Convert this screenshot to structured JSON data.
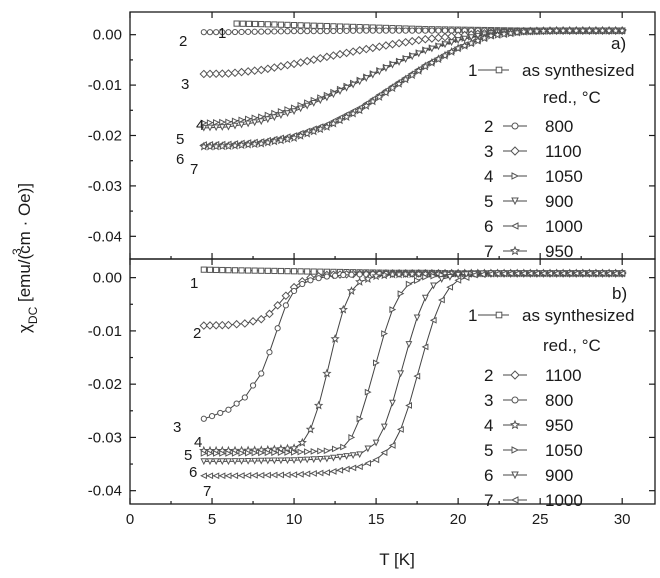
{
  "figure": {
    "xlabel": "T [K]",
    "ylabel_main": "χ",
    "ylabel_sub": "DC",
    "ylabel_rest": " [emu/(cm · Oe)]",
    "ylabel_sup": "3"
  },
  "chart_data": [
    {
      "type": "scatter",
      "panel_label": "a)",
      "xlim": [
        0,
        32
      ],
      "ylim": [
        -0.0445,
        0.0045
      ],
      "xticks": [
        0,
        5,
        10,
        15,
        20,
        25,
        30
      ],
      "yticks": [
        0.0,
        -0.01,
        -0.02,
        -0.03,
        -0.04
      ],
      "ytick_labels": [
        "0.00",
        "-0.01",
        "-0.02",
        "-0.03",
        "-0.04"
      ],
      "grid": false,
      "legend_position": "right",
      "legend": {
        "header": [
          {
            "num": "1",
            "marker": "square",
            "label": "as synthesized"
          }
        ],
        "subheader": "red., °C",
        "entries": [
          {
            "num": "2",
            "marker": "circle",
            "label": "800"
          },
          {
            "num": "3",
            "marker": "diamond",
            "label": "1100"
          },
          {
            "num": "4",
            "marker": "triangle-right",
            "label": "1050"
          },
          {
            "num": "5",
            "marker": "triangle-down",
            "label": "900"
          },
          {
            "num": "6",
            "marker": "triangle-left",
            "label": "1000"
          },
          {
            "num": "7",
            "marker": "star",
            "label": "950"
          }
        ]
      },
      "series": [
        {
          "num": "1",
          "marker": "square",
          "xs": [
            6.5,
            8,
            10,
            12,
            14,
            16,
            18,
            20,
            22,
            24,
            26,
            28,
            30
          ],
          "ys": [
            0.0022,
            0.0021,
            0.0019,
            0.0017,
            0.0015,
            0.0013,
            0.0011,
            0.001,
            0.0009,
            0.0008,
            0.0008,
            0.0008,
            0.0008
          ]
        },
        {
          "num": "2",
          "marker": "circle",
          "xs": [
            4.5,
            6,
            8,
            10,
            12,
            14,
            16,
            18,
            20,
            22,
            24,
            26,
            28,
            30
          ],
          "ys": [
            0.0005,
            0.0005,
            0.0006,
            0.0007,
            0.0007,
            0.0008,
            0.0008,
            0.0008,
            0.0008,
            0.0008,
            0.0008,
            0.0008,
            0.0008,
            0.0008
          ]
        },
        {
          "num": "3",
          "marker": "diamond",
          "xs": [
            4.5,
            6,
            8,
            10,
            12,
            14,
            16,
            18,
            20,
            22,
            24,
            26,
            28,
            30
          ],
          "ys": [
            -0.0078,
            -0.0077,
            -0.007,
            -0.0058,
            -0.0044,
            -0.0031,
            -0.0019,
            -0.0009,
            -0.0002,
            0.0004,
            0.0007,
            0.0008,
            0.0008,
            0.0008
          ]
        },
        {
          "num": "4",
          "marker": "triangle-right",
          "xs": [
            4.5,
            6,
            8,
            10,
            12,
            14,
            16,
            18,
            20,
            22,
            24,
            26,
            28,
            30
          ],
          "ys": [
            -0.0175,
            -0.0173,
            -0.0163,
            -0.0145,
            -0.012,
            -0.009,
            -0.0058,
            -0.003,
            -0.001,
            0.0003,
            0.0007,
            0.0008,
            0.0008,
            0.0008
          ]
        },
        {
          "num": "5",
          "marker": "triangle-down",
          "xs": [
            4.5,
            6,
            8,
            10,
            12,
            14,
            16,
            18,
            20,
            22,
            24,
            26,
            28,
            30
          ],
          "ys": [
            -0.0185,
            -0.0183,
            -0.0172,
            -0.0152,
            -0.0125,
            -0.0093,
            -0.006,
            -0.0032,
            -0.0011,
            0.0003,
            0.0007,
            0.0008,
            0.0008,
            0.0008
          ]
        },
        {
          "num": "6",
          "marker": "triangle-left",
          "xs": [
            4.5,
            6,
            8,
            10,
            12,
            14,
            16,
            18,
            20,
            22,
            24,
            26,
            28,
            30
          ],
          "ys": [
            -0.0218,
            -0.0217,
            -0.0212,
            -0.02,
            -0.0178,
            -0.0145,
            -0.0102,
            -0.006,
            -0.0025,
            -0.0002,
            0.0006,
            0.0008,
            0.0008,
            0.0008
          ]
        },
        {
          "num": "7",
          "marker": "star",
          "xs": [
            4.5,
            6,
            8,
            10,
            12,
            14,
            16,
            18,
            20,
            22,
            24,
            26,
            28,
            30
          ],
          "ys": [
            -0.0222,
            -0.0221,
            -0.0216,
            -0.0205,
            -0.0183,
            -0.015,
            -0.0106,
            -0.0063,
            -0.0027,
            -0.0002,
            0.0006,
            0.0008,
            0.0008,
            0.0008
          ]
        }
      ]
    },
    {
      "type": "scatter",
      "panel_label": "b)",
      "xlim": [
        0,
        32
      ],
      "ylim": [
        -0.0425,
        0.0035
      ],
      "xticks": [
        0,
        5,
        10,
        15,
        20,
        25,
        30
      ],
      "xtick_labels": [
        "0",
        "5",
        "10",
        "15",
        "20",
        "25",
        "30"
      ],
      "yticks": [
        0.0,
        -0.01,
        -0.02,
        -0.03,
        -0.04
      ],
      "ytick_labels": [
        "0.00",
        "-0.01",
        "-0.02",
        "-0.03",
        "-0.04"
      ],
      "grid": false,
      "legend_position": "right",
      "legend": {
        "header": [
          {
            "num": "1",
            "marker": "square",
            "label": "as synthesized"
          }
        ],
        "subheader": "red., °C",
        "entries": [
          {
            "num": "2",
            "marker": "diamond",
            "label": "1100"
          },
          {
            "num": "3",
            "marker": "circle",
            "label": "800"
          },
          {
            "num": "4",
            "marker": "star",
            "label": "950"
          },
          {
            "num": "5",
            "marker": "triangle-right",
            "label": "1050"
          },
          {
            "num": "6",
            "marker": "triangle-down",
            "label": "900"
          },
          {
            "num": "7",
            "marker": "triangle-left",
            "label": "1000"
          }
        ]
      },
      "series": [
        {
          "num": "1",
          "marker": "square",
          "xs": [
            4.5,
            6,
            8,
            10,
            12,
            14,
            16,
            18,
            20,
            22,
            24,
            26,
            28,
            30
          ],
          "ys": [
            0.0015,
            0.0014,
            0.0013,
            0.0012,
            0.0011,
            0.001,
            0.0009,
            0.0009,
            0.0008,
            0.0008,
            0.0008,
            0.0008,
            0.0008,
            0.0008
          ]
        },
        {
          "num": "2",
          "marker": "diamond",
          "xs": [
            4.5,
            6,
            7,
            8,
            8.5,
            9,
            9.5,
            10,
            10.5,
            11,
            12,
            14,
            16,
            18,
            20,
            22,
            24,
            26,
            28,
            30
          ],
          "ys": [
            -0.009,
            -0.0089,
            -0.0086,
            -0.0078,
            -0.0068,
            -0.0052,
            -0.0034,
            -0.0018,
            -0.0007,
            0.0,
            0.0005,
            0.0007,
            0.0008,
            0.0008,
            0.0008,
            0.0008,
            0.0008,
            0.0008,
            0.0008,
            0.0008
          ]
        },
        {
          "num": "3",
          "marker": "circle",
          "xs": [
            4.5,
            5,
            6,
            7,
            8,
            8.5,
            9,
            9.5,
            10,
            10.5,
            11,
            11.5,
            12,
            13,
            14,
            16,
            18,
            20,
            22,
            24,
            26,
            28,
            30
          ],
          "ys": [
            -0.0265,
            -0.026,
            -0.0248,
            -0.0225,
            -0.018,
            -0.014,
            -0.0095,
            -0.0052,
            -0.0025,
            -0.0012,
            -0.0005,
            -0.0001,
            0.0002,
            0.0005,
            0.0006,
            0.0007,
            0.0008,
            0.0008,
            0.0008,
            0.0008,
            0.0008,
            0.0008,
            0.0008
          ]
        },
        {
          "num": "4",
          "marker": "star",
          "xs": [
            4.5,
            6,
            8,
            10,
            10.5,
            11,
            11.5,
            12,
            12.5,
            13,
            13.5,
            14,
            15,
            16,
            18,
            20,
            22,
            24,
            26,
            28,
            30
          ],
          "ys": [
            -0.0325,
            -0.0325,
            -0.0324,
            -0.032,
            -0.031,
            -0.0285,
            -0.024,
            -0.018,
            -0.0115,
            -0.006,
            -0.0025,
            -0.0008,
            0.0003,
            0.0006,
            0.0007,
            0.0008,
            0.0008,
            0.0008,
            0.0008,
            0.0008,
            0.0008
          ]
        },
        {
          "num": "5",
          "marker": "triangle-right",
          "xs": [
            4.5,
            6,
            8,
            10,
            12,
            13,
            13.5,
            14,
            14.5,
            15,
            15.5,
            16,
            16.5,
            17,
            18,
            19,
            20,
            22,
            24,
            26,
            28,
            30
          ],
          "ys": [
            -0.033,
            -0.033,
            -0.0329,
            -0.0328,
            -0.0325,
            -0.0318,
            -0.03,
            -0.0265,
            -0.0215,
            -0.016,
            -0.0105,
            -0.006,
            -0.003,
            -0.0012,
            0.0001,
            0.0005,
            0.0007,
            0.0008,
            0.0008,
            0.0008,
            0.0008,
            0.0008
          ]
        },
        {
          "num": "6",
          "marker": "triangle-down",
          "xs": [
            4.5,
            6,
            8,
            10,
            12,
            14,
            15,
            15.5,
            16,
            16.5,
            17,
            17.5,
            18,
            18.5,
            19,
            20,
            21,
            22,
            24,
            26,
            28,
            30
          ],
          "ys": [
            -0.0345,
            -0.0345,
            -0.0344,
            -0.0343,
            -0.034,
            -0.0332,
            -0.031,
            -0.028,
            -0.0235,
            -0.018,
            -0.0125,
            -0.0075,
            -0.0038,
            -0.0015,
            -0.0003,
            0.0005,
            0.0007,
            0.0008,
            0.0008,
            0.0008,
            0.0008,
            0.0008
          ]
        },
        {
          "num": "7",
          "marker": "triangle-left",
          "xs": [
            4.5,
            6,
            8,
            10,
            12,
            14,
            15,
            16,
            16.5,
            17,
            17.5,
            18,
            18.5,
            19,
            19.5,
            20,
            21,
            22,
            24,
            26,
            28,
            30
          ],
          "ys": [
            -0.0372,
            -0.0372,
            -0.0371,
            -0.037,
            -0.0366,
            -0.0355,
            -0.0342,
            -0.0315,
            -0.0285,
            -0.024,
            -0.0185,
            -0.013,
            -0.008,
            -0.0042,
            -0.0018,
            -0.0005,
            0.0005,
            0.0007,
            0.0008,
            0.0008,
            0.0008,
            0.0008
          ]
        }
      ]
    }
  ]
}
